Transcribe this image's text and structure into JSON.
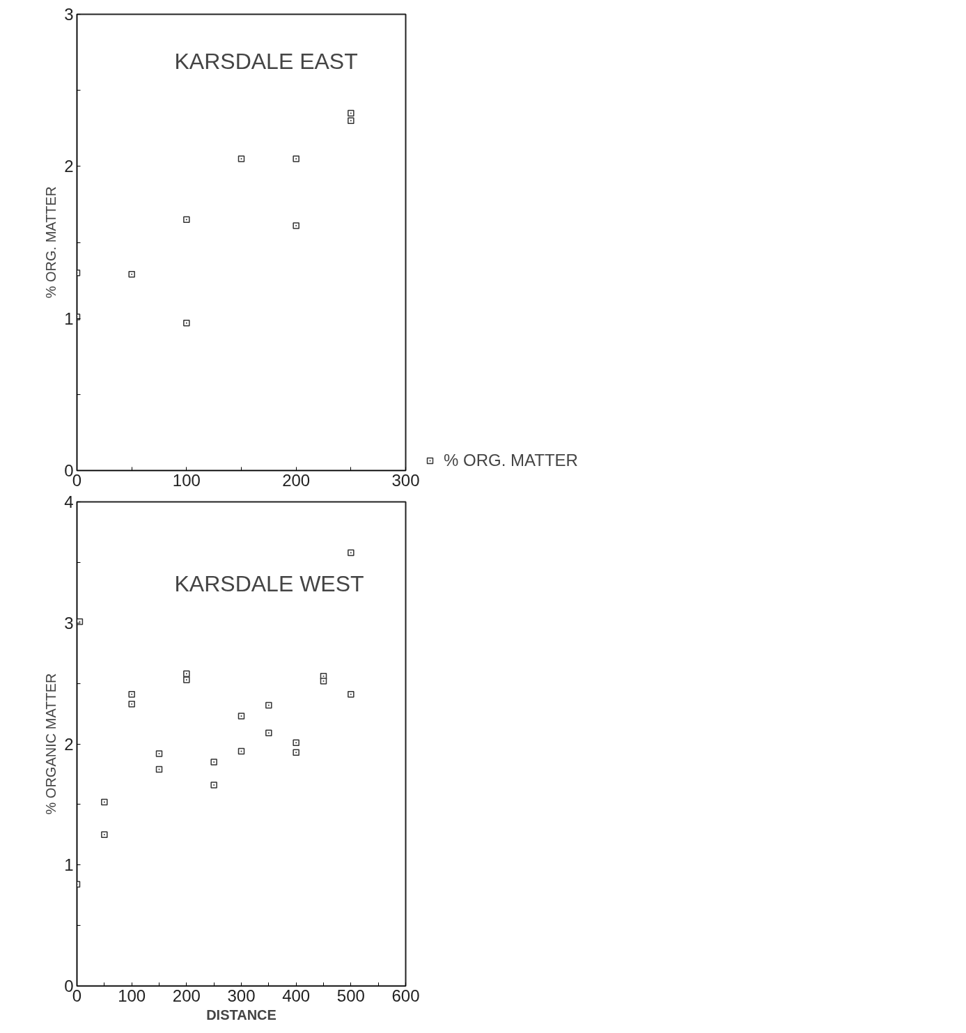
{
  "chart_data": [
    {
      "type": "scatter",
      "title": "KARSDALE EAST",
      "ylabel": "% ORG. MATTER",
      "marker": "square",
      "grid": false,
      "legend": "right",
      "xlim": [
        0,
        300
      ],
      "ylim": [
        0,
        3
      ],
      "xticks": [
        0,
        {
          "value": 50,
          "label": null
        },
        100,
        {
          "value": 150,
          "label": null
        },
        200,
        {
          "value": 250,
          "label": null
        },
        300
      ],
      "yticks": [
        0,
        {
          "value": 0.5,
          "label": null
        },
        1,
        {
          "value": 1.5,
          "label": null
        },
        2,
        {
          "value": 2.5,
          "label": null
        },
        3
      ],
      "series": [
        {
          "name": "% ORG. MATTER",
          "color": "#333333",
          "x": [
            0,
            0,
            50,
            100,
            100,
            150,
            200,
            200,
            250,
            250
          ],
          "values": [
            1.3,
            1.01,
            1.29,
            1.65,
            0.97,
            2.05,
            2.05,
            1.61,
            2.35,
            2.3
          ]
        }
      ]
    },
    {
      "type": "scatter",
      "title": "KARSDALE WEST",
      "ylabel": "% ORGANIC MATTER",
      "xlabel": "DISTANCE",
      "marker": "square",
      "grid": false,
      "xlim": [
        0,
        600
      ],
      "ylim": [
        0,
        4
      ],
      "xticks": [
        0,
        {
          "value": 50,
          "label": null
        },
        100,
        {
          "value": 150,
          "label": null
        },
        200,
        {
          "value": 250,
          "label": null
        },
        300,
        {
          "value": 350,
          "label": null
        },
        400,
        {
          "value": 450,
          "label": null
        },
        500,
        {
          "value": 550,
          "label": null
        },
        600
      ],
      "yticks": [
        0,
        {
          "value": 0.5,
          "label": null
        },
        1,
        {
          "value": 1.5,
          "label": null
        },
        2,
        {
          "value": 2.5,
          "label": null
        },
        3,
        {
          "value": 3.5,
          "label": null
        },
        4
      ],
      "series": [
        {
          "color": "#333333",
          "x": [
            0,
            5,
            50,
            50,
            100,
            100,
            150,
            150,
            200,
            200,
            250,
            250,
            300,
            300,
            350,
            350,
            400,
            400,
            450,
            450,
            500,
            500
          ],
          "values": [
            0.84,
            3.01,
            1.52,
            1.25,
            2.41,
            2.33,
            1.92,
            1.79,
            2.58,
            2.53,
            1.85,
            1.66,
            2.23,
            1.94,
            2.32,
            2.09,
            2.01,
            1.93,
            2.56,
            2.52,
            3.58,
            2.41
          ]
        }
      ]
    }
  ]
}
